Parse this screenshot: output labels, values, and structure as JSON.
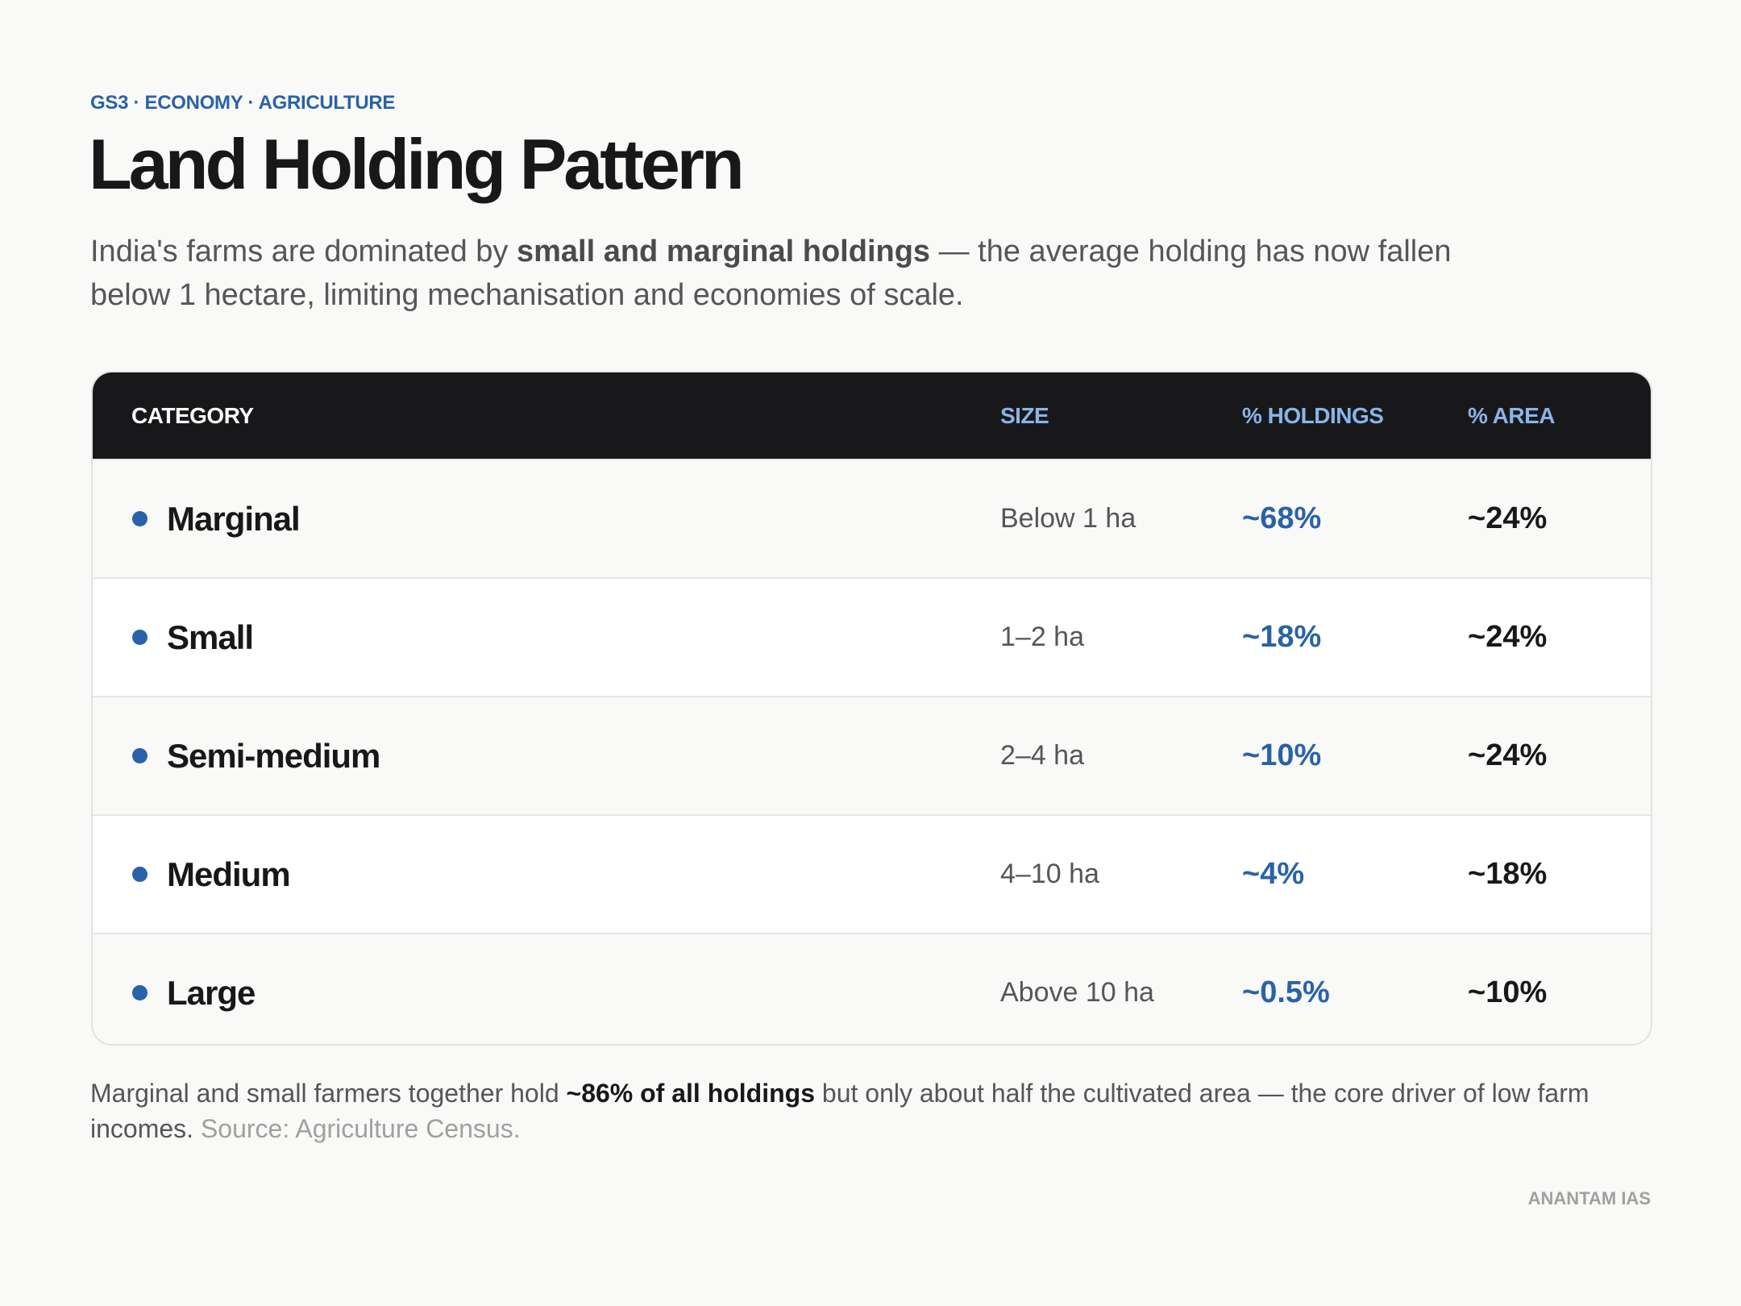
{
  "header": {
    "kicker": "GS3 · ECONOMY · AGRICULTURE",
    "title": "Land Holding Pattern",
    "subtitle": [
      "India's farms are dominated by ",
      "small and marginal holdings",
      " — the average holding has now fallen below 1 hectare, limiting mechanisation and economies of scale."
    ]
  },
  "table": {
    "columns": [
      "CATEGORY",
      "SIZE",
      "% HOLDINGS",
      "% AREA"
    ],
    "rows": [
      [
        "Marginal",
        "Below 1 ha",
        "~68%",
        "~24%"
      ],
      [
        "Small",
        "1–2 ha",
        "~18%",
        "~24%"
      ],
      [
        "Semi-medium",
        "2–4 ha",
        "~10%",
        "~24%"
      ],
      [
        "Medium",
        "4–10 ha",
        "~4%",
        "~18%"
      ],
      [
        "Large",
        "Above 10 ha",
        "~0.5%",
        "~10%"
      ]
    ]
  },
  "footnote": [
    "Marginal and small farmers together hold ",
    "~86% of all holdings",
    " but only about half the cultivated area — the core driver of low farm incomes. ",
    "Source: Agriculture Census."
  ],
  "brand": "ANANTAM IAS"
}
